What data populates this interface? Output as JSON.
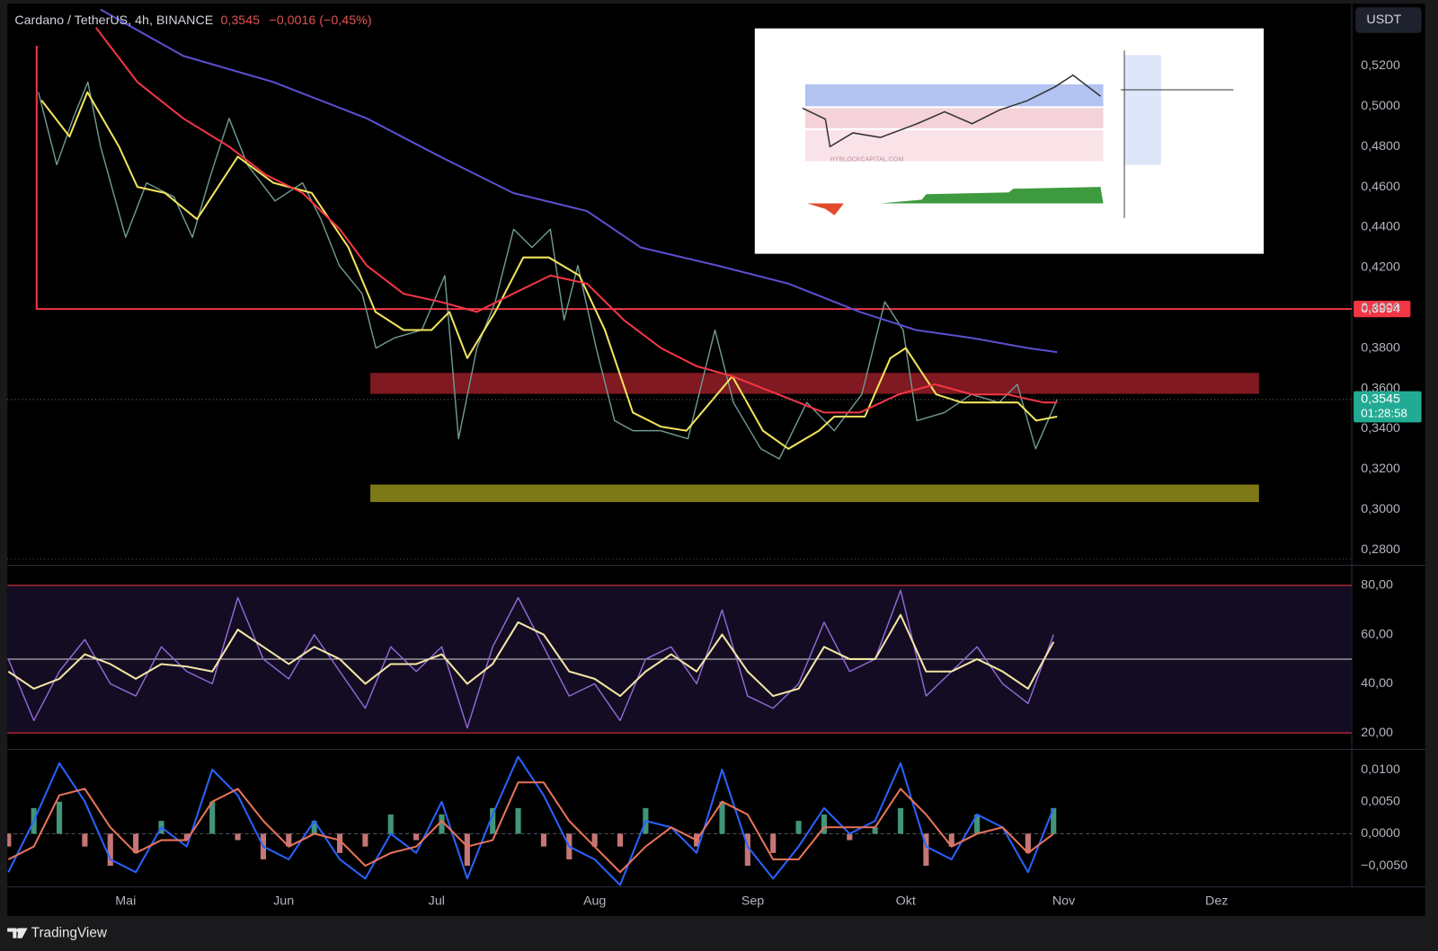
{
  "ui": {
    "currency_button": "USDT",
    "brand": "TradingView",
    "countdown": "01:28:58",
    "change": "−0,0016 (−0,45%)",
    "inset_watermark": "HYBLOCKCAPITAL.COM"
  },
  "chart_data": [
    {
      "type": "line",
      "title": "Cardano / TetherUS, 4h, BINANCE",
      "last_value": {
        "value": 0.3545,
        "label": "0,3545"
      },
      "xlim": [
        -23.2,
        240.5
      ],
      "xticks": [
        {
          "value": 0,
          "label": "Mai"
        },
        {
          "value": 31,
          "label": "Jun"
        },
        {
          "value": 61,
          "label": "Jul"
        },
        {
          "value": 92,
          "label": "Aug"
        },
        {
          "value": 123,
          "label": "Sep"
        },
        {
          "value": 153,
          "label": "Okt"
        },
        {
          "value": 184,
          "label": "Nov"
        },
        {
          "value": 214,
          "label": "Dez"
        }
      ],
      "ylim": [
        0.2745,
        0.5491
      ],
      "yticks": [
        {
          "value": 0.28,
          "label": "0,2800"
        },
        {
          "value": 0.3,
          "label": "0,3000"
        },
        {
          "value": 0.32,
          "label": "0,3200"
        },
        {
          "value": 0.34,
          "label": "0,3400"
        },
        {
          "value": 0.36,
          "label": "0,3600"
        },
        {
          "value": 0.38,
          "label": "0,3800"
        },
        {
          "value": 0.4,
          "label": "0,4000"
        },
        {
          "value": 0.42,
          "label": "0,4200"
        },
        {
          "value": 0.44,
          "label": "0,4400"
        },
        {
          "value": 0.46,
          "label": "0,4600"
        },
        {
          "value": 0.48,
          "label": "0,4800"
        },
        {
          "value": 0.5,
          "label": "0,5000"
        },
        {
          "value": 0.52,
          "label": "0,5200"
        }
      ],
      "grid": false,
      "zones": [
        {
          "from": 0.3573,
          "to": 0.3677,
          "x": [
            48,
            222.3
          ],
          "color": "#8e1c25"
        },
        {
          "from": 0.3036,
          "to": 0.3123,
          "x": [
            48,
            222.3
          ],
          "color": "#8a8618"
        }
      ],
      "hlines": [
        {
          "value": 0.3994,
          "label": "0,3994",
          "x": -17.4,
          "color": "#f23645"
        }
      ],
      "series": [
        {
          "color": "#6f9a92",
          "x": [
            -17.1,
            -13.5,
            -10.3,
            -7.4,
            -4.9,
            0,
            4.1,
            9.5,
            13.1,
            16.7,
            20.3,
            23.9,
            29.3,
            34.7,
            38.3,
            41.9,
            46.4,
            49.1,
            52.7,
            58.1,
            62.6,
            65.3,
            68.9,
            72.5,
            76.1,
            79.7,
            83.3,
            86,
            88.7,
            92.3,
            95.9,
            99.5,
            104.9,
            110.3,
            115.6,
            119.2,
            124.6,
            128.2,
            133.6,
            139,
            144.4,
            148.9,
            152.5,
            155.2,
            160.6,
            165.9,
            171.3,
            174.9,
            178.5,
            182.7
          ],
          "values": [
            0.507,
            0.471,
            0.494,
            0.512,
            0.48,
            0.435,
            0.462,
            0.455,
            0.435,
            0.466,
            0.494,
            0.471,
            0.453,
            0.462,
            0.444,
            0.421,
            0.407,
            0.38,
            0.385,
            0.389,
            0.416,
            0.335,
            0.38,
            0.403,
            0.439,
            0.43,
            0.439,
            0.394,
            0.421,
            0.38,
            0.344,
            0.339,
            0.339,
            0.335,
            0.389,
            0.353,
            0.33,
            0.325,
            0.353,
            0.339,
            0.357,
            0.403,
            0.389,
            0.344,
            0.348,
            0.357,
            0.353,
            0.362,
            0.33,
            0.3545
          ]
        },
        {
          "color": "#f2e45c",
          "x": [
            -16.5,
            -11,
            -7.5,
            -1.3,
            2.3,
            7.7,
            14,
            22,
            29,
            36.5,
            43.7,
            49,
            54.5,
            60,
            63.5,
            67,
            72.5,
            78,
            83,
            89,
            94,
            99.5,
            105,
            110,
            116,
            119,
            125,
            130,
            136,
            139,
            145,
            150,
            153,
            159,
            164,
            170,
            175,
            178.6,
            182.7
          ],
          "values": [
            0.503,
            0.485,
            0.507,
            0.48,
            0.46,
            0.457,
            0.444,
            0.475,
            0.462,
            0.457,
            0.43,
            0.398,
            0.389,
            0.389,
            0.398,
            0.375,
            0.398,
            0.425,
            0.425,
            0.416,
            0.389,
            0.348,
            0.341,
            0.339,
            0.357,
            0.366,
            0.339,
            0.33,
            0.339,
            0.346,
            0.346,
            0.375,
            0.38,
            0.357,
            0.353,
            0.353,
            0.353,
            0.344,
            0.346
          ]
        },
        {
          "color": "#f23645",
          "x": [
            -5.8,
            2.3,
            11.3,
            20.3,
            27.5,
            34.7,
            42,
            47.3,
            54.5,
            61.7,
            68.9,
            76,
            83.3,
            90.5,
            97.7,
            105,
            112,
            119,
            128,
            137,
            144,
            151.6,
            158.8,
            166,
            173,
            180,
            182.7
          ],
          "values": [
            0.539,
            0.512,
            0.494,
            0.48,
            0.466,
            0.457,
            0.439,
            0.421,
            0.407,
            0.403,
            0.398,
            0.407,
            0.416,
            0.412,
            0.394,
            0.38,
            0.371,
            0.366,
            0.357,
            0.348,
            0.348,
            0.357,
            0.362,
            0.357,
            0.357,
            0.353,
            0.353
          ]
        },
        {
          "color": "#5b4fd0",
          "x": [
            -4.9,
            11.3,
            29,
            47.3,
            61.7,
            76,
            90.5,
            101,
            116,
            130,
            144,
            155,
            166,
            177,
            182.7
          ],
          "values": [
            0.548,
            0.525,
            0.512,
            0.494,
            0.475,
            0.457,
            0.448,
            0.43,
            0.421,
            0.412,
            0.398,
            0.389,
            0.385,
            0.38,
            0.378
          ]
        }
      ]
    },
    {
      "type": "line",
      "ylim": [
        14.4,
        86.3
      ],
      "yticks": [
        {
          "value": 20,
          "label": "20,00"
        },
        {
          "value": 40,
          "label": "40,00"
        },
        {
          "value": 60,
          "label": "60,00"
        },
        {
          "value": 80,
          "label": "80,00"
        }
      ],
      "levels": [
        {
          "value": 80,
          "color": "#f23645"
        },
        {
          "value": 50,
          "color": "#d8d8d8"
        },
        {
          "value": 20,
          "color": "#f23645"
        }
      ],
      "band_color": "#140c22",
      "x": [
        -23,
        -18,
        -13,
        -8,
        -3,
        2,
        7,
        12,
        17,
        22,
        27,
        32,
        37,
        42,
        47,
        52,
        57,
        62,
        67,
        72,
        77,
        82,
        87,
        92,
        97,
        102,
        107,
        112,
        117,
        122,
        127,
        132,
        137,
        142,
        147,
        152,
        157,
        162,
        167,
        172,
        177,
        182
      ],
      "series": [
        {
          "color": "#8e6bd8",
          "values": [
            50,
            25,
            45,
            58,
            40,
            35,
            55,
            45,
            40,
            75,
            50,
            42,
            60,
            45,
            30,
            55,
            45,
            55,
            22,
            55,
            75,
            55,
            35,
            40,
            25,
            50,
            55,
            40,
            70,
            35,
            30,
            40,
            65,
            45,
            50,
            78,
            35,
            45,
            55,
            40,
            32,
            60
          ]
        },
        {
          "color": "#f3e6a6",
          "values": [
            45,
            38,
            42,
            52,
            48,
            42,
            48,
            47,
            45,
            62,
            55,
            48,
            55,
            50,
            40,
            48,
            48,
            52,
            40,
            48,
            65,
            60,
            45,
            42,
            35,
            45,
            52,
            45,
            60,
            45,
            35,
            38,
            55,
            50,
            50,
            68,
            45,
            45,
            50,
            45,
            38,
            57
          ]
        }
      ]
    },
    {
      "type": "line",
      "ylim": [
        -0.00829,
        0.01286
      ],
      "yticks": [
        {
          "value": -0.005,
          "label": "−0,0050"
        },
        {
          "value": 0,
          "label": "0,0000"
        },
        {
          "value": 0.005,
          "label": "0,0050"
        },
        {
          "value": 0.01,
          "label": "0,0100"
        }
      ],
      "levels": [
        {
          "value": 0,
          "color": "#555a66",
          "style": "dashed"
        }
      ],
      "x": [
        -23,
        -18,
        -13,
        -8,
        -3,
        2,
        7,
        12,
        17,
        22,
        27,
        32,
        37,
        42,
        47,
        52,
        57,
        62,
        67,
        72,
        77,
        82,
        87,
        92,
        97,
        102,
        107,
        112,
        117,
        122,
        127,
        132,
        137,
        142,
        147,
        152,
        157,
        162,
        167,
        172,
        177,
        182
      ],
      "series": [
        {
          "type": "bar",
          "colors": [
            "#4caf8f",
            "#e88b8b"
          ],
          "values": [
            -0.002,
            0.004,
            0.005,
            -0.002,
            -0.005,
            -0.003,
            0.002,
            -0.001,
            0.005,
            -0.001,
            -0.004,
            -0.002,
            0.002,
            -0.003,
            -0.002,
            0.003,
            -0.001,
            0.003,
            -0.005,
            0.004,
            0.004,
            -0.002,
            -0.004,
            -0.002,
            -0.002,
            0.004,
            0,
            -0.002,
            0.005,
            -0.005,
            -0.003,
            0.002,
            0.003,
            -0.001,
            0.001,
            0.004,
            -0.005,
            -0.002,
            0.003,
            0,
            -0.003,
            0.004
          ]
        },
        {
          "color": "#2962ff",
          "values": [
            -0.006,
            0.002,
            0.011,
            0.005,
            -0.004,
            -0.006,
            0.001,
            -0.002,
            0.01,
            0.006,
            -0.002,
            -0.004,
            0.002,
            -0.004,
            -0.007,
            0,
            -0.003,
            0.005,
            -0.007,
            0.003,
            0.012,
            0.006,
            -0.002,
            -0.004,
            -0.008,
            0.002,
            0.001,
            -0.003,
            0.01,
            -0.002,
            -0.007,
            -0.002,
            0.004,
            0,
            0.002,
            0.011,
            -0.002,
            -0.004,
            0.003,
            0.001,
            -0.006,
            0.004
          ]
        },
        {
          "color": "#e8735a",
          "values": [
            -0.004,
            -0.002,
            0.006,
            0.007,
            0.001,
            -0.003,
            -0.001,
            -0.001,
            0.005,
            0.007,
            0.002,
            -0.002,
            0,
            -0.001,
            -0.005,
            -0.003,
            -0.002,
            0.002,
            -0.002,
            -0.001,
            0.008,
            0.008,
            0.002,
            -0.002,
            -0.006,
            -0.002,
            0.001,
            -0.001,
            0.005,
            0.003,
            -0.004,
            -0.004,
            0.001,
            0.001,
            0.001,
            0.007,
            0.003,
            -0.002,
            0,
            0.001,
            -0.003,
            0
          ]
        }
      ]
    }
  ]
}
